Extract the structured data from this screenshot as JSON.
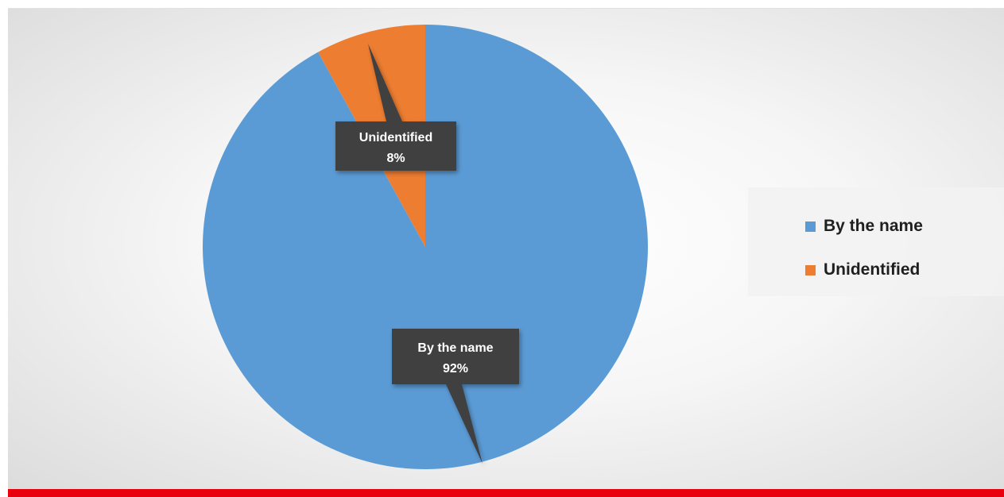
{
  "chart_data": {
    "type": "pie",
    "slices": [
      {
        "label": "By the name",
        "value": 92,
        "percent_label": "92%",
        "color": "#5b9bd5"
      },
      {
        "label": "Unidentified",
        "value": 8,
        "percent_label": "8%",
        "color": "#ed7d31"
      }
    ],
    "legend": {
      "placement": "right",
      "entries": [
        "By the name",
        "Unidentified"
      ]
    },
    "data_labels": "callout",
    "title": ""
  },
  "colors": {
    "bottom_bar": "#e8000e",
    "callout_bg": "#404040"
  }
}
